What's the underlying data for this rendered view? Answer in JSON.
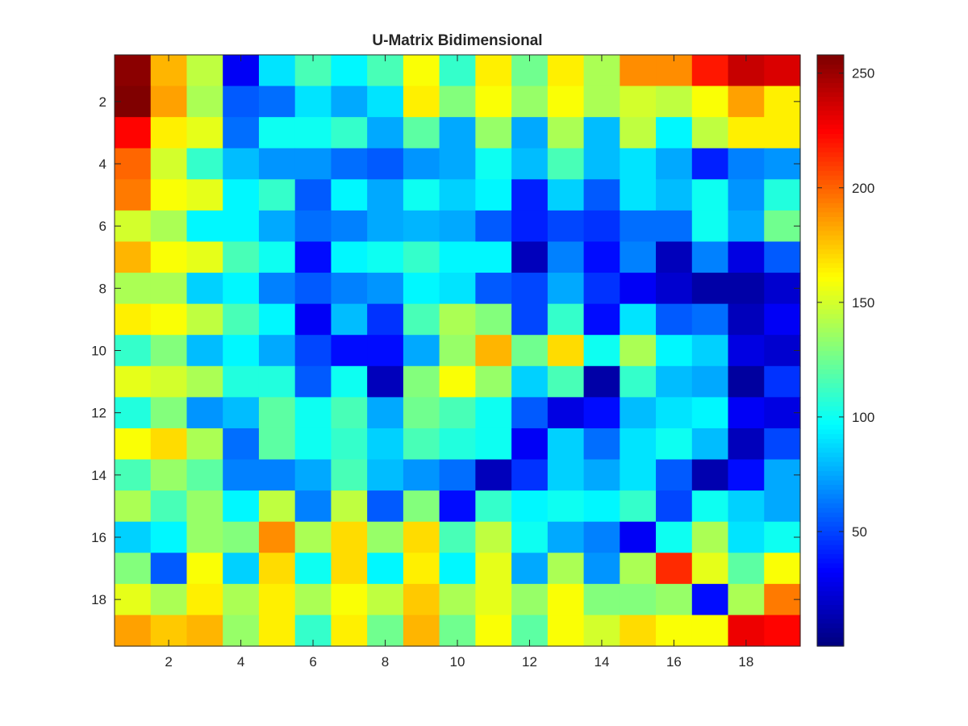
{
  "chart_data": {
    "type": "heatmap",
    "title": "U-Matrix Bidimensional",
    "xlabel": "",
    "ylabel": "",
    "xlim": [
      0.5,
      19.5
    ],
    "ylim": [
      0.5,
      19.5
    ],
    "y_reversed": true,
    "x_ticks": [
      2,
      4,
      6,
      8,
      10,
      12,
      14,
      16,
      18
    ],
    "y_ticks": [
      2,
      4,
      6,
      8,
      10,
      12,
      14,
      16,
      18
    ],
    "colormap": "jet",
    "color_range": [
      0,
      258
    ],
    "colorbar_ticks": [
      50,
      100,
      150,
      200,
      250
    ],
    "colorbar_location": "right",
    "grid": false,
    "values": [
      [
        255,
        180,
        145,
        30,
        90,
        115,
        95,
        115,
        160,
        110,
        165,
        125,
        165,
        140,
        190,
        190,
        220,
        240,
        235
      ],
      [
        258,
        185,
        140,
        55,
        60,
        90,
        75,
        90,
        165,
        130,
        160,
        135,
        160,
        140,
        150,
        145,
        160,
        185,
        165
      ],
      [
        225,
        165,
        155,
        60,
        100,
        100,
        110,
        75,
        120,
        75,
        135,
        75,
        140,
        80,
        145,
        95,
        145,
        165,
        165
      ],
      [
        200,
        150,
        110,
        80,
        70,
        70,
        60,
        55,
        70,
        75,
        100,
        80,
        115,
        80,
        90,
        75,
        40,
        65,
        70
      ],
      [
        195,
        160,
        155,
        95,
        110,
        55,
        95,
        75,
        100,
        85,
        95,
        40,
        85,
        55,
        90,
        80,
        100,
        70,
        105
      ],
      [
        150,
        140,
        95,
        95,
        75,
        60,
        65,
        75,
        78,
        75,
        55,
        40,
        50,
        45,
        60,
        60,
        100,
        75,
        125
      ],
      [
        180,
        160,
        155,
        115,
        100,
        35,
        95,
        100,
        110,
        95,
        95,
        15,
        65,
        35,
        65,
        15,
        65,
        25,
        55
      ],
      [
        140,
        140,
        85,
        95,
        65,
        55,
        65,
        70,
        95,
        90,
        55,
        50,
        75,
        45,
        30,
        20,
        10,
        10,
        20
      ],
      [
        165,
        160,
        145,
        115,
        95,
        30,
        80,
        45,
        115,
        140,
        130,
        50,
        110,
        35,
        90,
        55,
        60,
        15,
        30
      ],
      [
        110,
        130,
        80,
        95,
        75,
        50,
        35,
        35,
        75,
        135,
        180,
        125,
        170,
        100,
        140,
        95,
        85,
        25,
        20
      ],
      [
        155,
        150,
        140,
        105,
        105,
        55,
        100,
        15,
        130,
        160,
        135,
        85,
        115,
        10,
        110,
        80,
        75,
        8,
        45
      ],
      [
        105,
        130,
        70,
        80,
        120,
        100,
        115,
        75,
        125,
        115,
        100,
        55,
        25,
        35,
        80,
        90,
        95,
        30,
        25
      ],
      [
        160,
        170,
        140,
        60,
        120,
        100,
        110,
        85,
        115,
        105,
        100,
        30,
        85,
        60,
        90,
        100,
        80,
        15,
        50
      ],
      [
        115,
        135,
        120,
        65,
        65,
        75,
        115,
        80,
        70,
        60,
        15,
        45,
        85,
        75,
        90,
        55,
        12,
        35,
        75
      ],
      [
        140,
        115,
        135,
        95,
        145,
        65,
        145,
        55,
        130,
        35,
        110,
        95,
        100,
        95,
        110,
        50,
        100,
        85,
        75
      ],
      [
        85,
        95,
        135,
        130,
        190,
        140,
        170,
        135,
        170,
        115,
        145,
        100,
        75,
        65,
        30,
        100,
        140,
        90,
        100
      ],
      [
        130,
        55,
        160,
        85,
        170,
        100,
        170,
        95,
        165,
        95,
        155,
        75,
        140,
        70,
        140,
        215,
        155,
        120,
        160
      ],
      [
        155,
        140,
        165,
        140,
        165,
        140,
        160,
        145,
        175,
        140,
        155,
        135,
        160,
        130,
        130,
        135,
        35,
        140,
        195
      ],
      [
        185,
        175,
        180,
        135,
        165,
        110,
        165,
        125,
        180,
        125,
        160,
        120,
        160,
        150,
        170,
        160,
        160,
        230,
        225
      ]
    ]
  }
}
